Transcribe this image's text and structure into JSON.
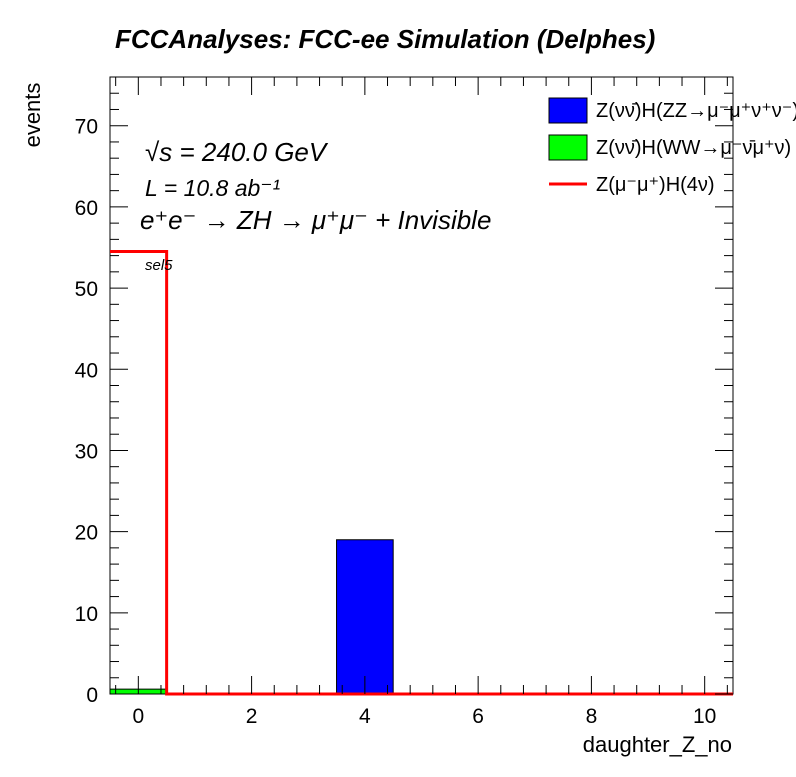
{
  "chart_data": {
    "type": "bar",
    "title": "FCCAnalyses: FCC-ee Simulation (Delphes)",
    "xlabel": "daughter_Z_no",
    "ylabel": "events",
    "xlim": [
      -0.5,
      10.5
    ],
    "ylim": [
      0,
      76
    ],
    "x_ticks": [
      0,
      2,
      4,
      6,
      8,
      10
    ],
    "y_ticks": [
      0,
      10,
      20,
      30,
      40,
      50,
      60,
      70
    ],
    "annotations": {
      "sqrt_s": "√s = 240.0 GeV",
      "lumi": "L = 10.8 ab⁻¹",
      "process": "e⁺e⁻ → ZH → μ⁺μ⁻ + Invisible",
      "selection": "sel5"
    },
    "legend_position": "top-right",
    "series": [
      {
        "name": "Z(νν̄)H(ZZ→μ⁻μ⁺ν⁺ν⁻)",
        "style": "filled",
        "color": "#0000ff",
        "bins": [
          {
            "x": 4,
            "value": 19
          }
        ]
      },
      {
        "name": "Z(νν̄)H(WW→μ⁻ν̄μ⁺ν)",
        "style": "filled",
        "color": "#00ff00",
        "bins": [
          {
            "x": 0,
            "value": 0.6
          }
        ]
      },
      {
        "name": "Z(μ⁻μ⁺)H(4ν)",
        "style": "line",
        "color": "#ff0000",
        "bins": [
          {
            "x": 0,
            "value": 54.5
          }
        ]
      }
    ]
  }
}
